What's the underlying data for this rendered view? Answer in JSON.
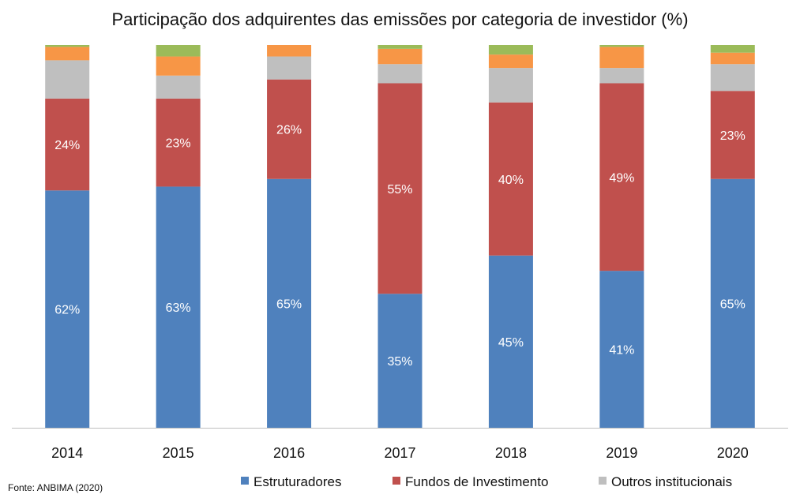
{
  "chart_data": {
    "type": "bar",
    "stacked": true,
    "title": "Participação dos adquirentes das emissões por categoria de investidor (%)",
    "source": "Fonte: ANBIMA (2020)",
    "categories": [
      "2014",
      "2015",
      "2016",
      "2017",
      "2018",
      "2019",
      "2020"
    ],
    "ylim": [
      0,
      100
    ],
    "grid": false,
    "legend_position": "bottom",
    "series": [
      {
        "name": "Estruturadores",
        "color": "#4f81bd",
        "values": [
          62,
          63,
          65,
          35,
          45,
          41,
          65
        ],
        "labels": [
          "62%",
          "63%",
          "65%",
          "35%",
          "45%",
          "41%",
          "65%"
        ]
      },
      {
        "name": "Fundos de Investimento",
        "color": "#c0504d",
        "values": [
          24,
          23,
          26,
          55,
          40,
          49,
          23
        ],
        "labels": [
          "24%",
          "23%",
          "26%",
          "55%",
          "40%",
          "49%",
          "23%"
        ]
      },
      {
        "name": "Outros institucionais",
        "color": "#bfbfbf",
        "values": [
          10,
          6,
          6,
          5,
          9,
          4,
          7
        ],
        "labels": []
      },
      {
        "name": "",
        "color": "#f79646",
        "values": [
          3.5,
          5,
          3,
          4,
          3.5,
          5.5,
          3
        ],
        "labels": []
      },
      {
        "name": "",
        "color": "#9bbb59",
        "values": [
          0.5,
          3,
          0,
          1,
          2.5,
          0.5,
          2
        ],
        "labels": []
      }
    ],
    "legend_entries": [
      "Estruturadores",
      "Fundos de Investimento",
      "Outros institucionais"
    ]
  }
}
